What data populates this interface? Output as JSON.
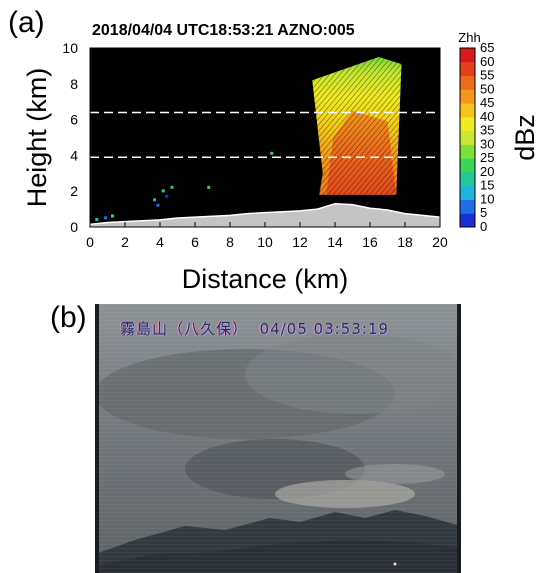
{
  "panel_a": {
    "label": "(a)",
    "title": "2018/04/04 UTC18:53:21 AZNO:005",
    "xlabel": "Distance (km)",
    "ylabel": "Height (km)",
    "x_ticks": [
      "0",
      "2",
      "4",
      "6",
      "8",
      "10",
      "12",
      "14",
      "16",
      "18",
      "20"
    ],
    "y_ticks": [
      "0",
      "2",
      "4",
      "6",
      "8",
      "10"
    ],
    "xlim": [
      0,
      20
    ],
    "ylim": [
      0,
      10
    ],
    "reference_lines_km": [
      3.9,
      6.4
    ],
    "colorbar": {
      "title": "Zhh",
      "unit": "dBz",
      "ticks": [
        "0",
        "5",
        "10",
        "15",
        "20",
        "25",
        "30",
        "35",
        "40",
        "45",
        "50",
        "55",
        "60",
        "65"
      ],
      "colors": [
        "#1a2fd8",
        "#1e6ee8",
        "#21b3e0",
        "#22c79a",
        "#3ad65a",
        "#7ae03a",
        "#c8e832",
        "#f0ea20",
        "#f5c41a",
        "#f3961a",
        "#ee6a1c",
        "#e6401c",
        "#d81a1c"
      ]
    }
  },
  "panel_b": {
    "label": "(b)",
    "caption": "霧島山（八久保）  04/05 03:53:19"
  },
  "chart_data": {
    "type": "heatmap",
    "title": "2018/04/04 UTC18:53:21 AZNO:005",
    "xlabel": "Distance (km)",
    "ylabel": "Height (km)",
    "xlim": [
      0,
      20
    ],
    "ylim": [
      0,
      10
    ],
    "colorbar": {
      "label": "Zhh",
      "unit": "dBz",
      "range": [
        0,
        65
      ]
    },
    "terrain_height_km": {
      "x": [
        0,
        1,
        2,
        3,
        4,
        5,
        6,
        7,
        8,
        9,
        10,
        11,
        12,
        13,
        14,
        15,
        16,
        17,
        18,
        19,
        20
      ],
      "y": [
        0.15,
        0.25,
        0.3,
        0.35,
        0.4,
        0.5,
        0.55,
        0.6,
        0.65,
        0.75,
        0.8,
        0.85,
        0.9,
        1.0,
        1.3,
        1.25,
        1.05,
        0.95,
        0.75,
        0.65,
        0.55
      ]
    },
    "echo_column": {
      "x_range_km": [
        12.7,
        17.8
      ],
      "y_range_km": [
        1.8,
        9.5
      ],
      "core_x_range_km": [
        13.8,
        17.5
      ],
      "core_y_range_km": [
        1.8,
        6.5
      ],
      "core_max_dbz": 55
    },
    "horizontal_lines_km": [
      3.9,
      6.4
    ]
  }
}
